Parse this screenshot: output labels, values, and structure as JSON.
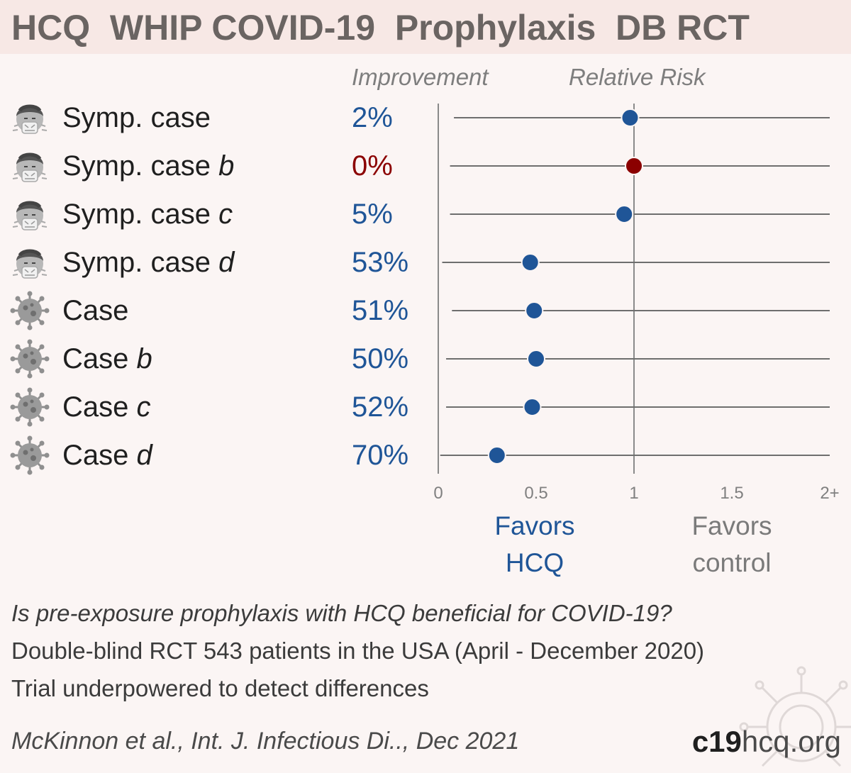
{
  "title": "HCQ  WHIP COVID-19  Prophylaxis  DB RCT",
  "columns": {
    "improvement": "Improvement",
    "relative_risk": "Relative Risk"
  },
  "rows": [
    {
      "base": "Symp. case",
      "suffix": "",
      "icon": "sneezing-face-icon",
      "improvement": "2%"
    },
    {
      "base": "Symp. case ",
      "suffix": "b",
      "icon": "sneezing-face-icon",
      "improvement": "0%"
    },
    {
      "base": "Symp. case ",
      "suffix": "c",
      "icon": "sneezing-face-icon",
      "improvement": "5%"
    },
    {
      "base": "Symp. case ",
      "suffix": "d",
      "icon": "sneezing-face-icon",
      "improvement": "53%"
    },
    {
      "base": "Case",
      "suffix": "",
      "icon": "virus-icon",
      "improvement": "51%"
    },
    {
      "base": "Case ",
      "suffix": "b",
      "icon": "virus-icon",
      "improvement": "50%"
    },
    {
      "base": "Case ",
      "suffix": "c",
      "icon": "virus-icon",
      "improvement": "52%"
    },
    {
      "base": "Case ",
      "suffix": "d",
      "icon": "virus-icon",
      "improvement": "70%"
    }
  ],
  "chart_data": {
    "type": "forest",
    "xlim": [
      0,
      2
    ],
    "ticks": [
      "0",
      "0.5",
      "1",
      "1.5",
      "2+"
    ],
    "tick_values": [
      0,
      0.5,
      1,
      1.5,
      2
    ],
    "reference_line": 1,
    "series": [
      {
        "label": "Symp. case",
        "rr": 0.98,
        "ci": [
          0.08,
          2.0
        ]
      },
      {
        "label": "Symp. case b",
        "rr": 1.0,
        "ci": [
          0.06,
          2.0
        ]
      },
      {
        "label": "Symp. case c",
        "rr": 0.95,
        "ci": [
          0.06,
          2.0
        ]
      },
      {
        "label": "Symp. case d",
        "rr": 0.47,
        "ci": [
          0.02,
          2.0
        ]
      },
      {
        "label": "Case",
        "rr": 0.49,
        "ci": [
          0.07,
          2.0
        ]
      },
      {
        "label": "Case b",
        "rr": 0.5,
        "ci": [
          0.04,
          2.0
        ]
      },
      {
        "label": "Case c",
        "rr": 0.48,
        "ci": [
          0.04,
          2.0
        ]
      },
      {
        "label": "Case d",
        "rr": 0.3,
        "ci": [
          0.01,
          2.0
        ]
      }
    ]
  },
  "favors": {
    "left": [
      "Favors",
      "HCQ"
    ],
    "right": [
      "Favors",
      "control"
    ]
  },
  "notes": {
    "question": "Is pre-exposure prophylaxis with HCQ beneficial for COVID-19?",
    "design": "Double-blind RCT 543 patients in the USA (April - December 2020)",
    "power": "Trial underpowered to detect differences"
  },
  "citation": "McKinnon et al., Int. J. Infectious Di.., Dec 2021",
  "brand": {
    "bold": "c19",
    "light": "hcq.org"
  },
  "colors": {
    "blue": "#1f5597",
    "red": "#8b0000",
    "line": "#6e6e6e",
    "title_bg": "#f7e8e5",
    "bg": "#fbf5f4"
  }
}
